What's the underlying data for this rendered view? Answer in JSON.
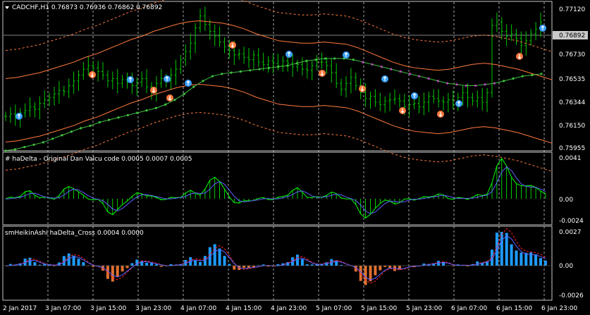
{
  "symbol_header": "CADCHF,H1  0.76873 0.76936 0.76862 0.76892",
  "colors": {
    "background": "#000000",
    "grid": "#cccccc",
    "candle": "#00c800",
    "envelope": "#ff7a3c",
    "trail_up": "#40c040",
    "trail_down": "#ff00ff",
    "arrow_up": "#3aa0ff",
    "arrow_down": "#ff7a3c",
    "hist_up": "#1e9bff",
    "hist_down": "#e07030",
    "ha_line": "#00ff00",
    "signal_line": "#6060ff",
    "cross_red": "#ff2020"
  },
  "main_panel": {
    "current_price": "0.76892",
    "y_ticks": [
      "0.77120",
      "0.76730",
      "0.76535",
      "0.76344",
      "0.76150",
      "0.75955"
    ]
  },
  "indicator1": {
    "title": "# haDelta - Original Dan Valcu code 0.0005 0.0007 0.0005",
    "y_ticks": [
      "0.0041",
      "0.00",
      "-0.0024"
    ]
  },
  "indicator2": {
    "title": "smHeikinAshi haDelta_Cross 0.0004 0.0000",
    "y_ticks": [
      "0.0027",
      "0.00",
      "-0.0026"
    ]
  },
  "time_axis": [
    "2 Jan 2017",
    "3 Jan 07:00",
    "3 Jan 15:00",
    "3 Jan 23:00",
    "4 Jan 07:00",
    "4 Jan 15:00",
    "4 Jan 23:00",
    "5 Jan 07:00",
    "5 Jan 15:00",
    "5 Jan 23:00",
    "6 Jan 07:00",
    "6 Jan 15:00",
    "6 Jan 23:00"
  ],
  "chart_data": {
    "type": "line",
    "candles_close": [
      0.762,
      0.7622,
      0.7619,
      0.7623,
      0.7625,
      0.7628,
      0.7626,
      0.7631,
      0.7634,
      0.7636,
      0.7639,
      0.7642,
      0.7641,
      0.7646,
      0.765,
      0.7655,
      0.766,
      0.7663,
      0.7661,
      0.7658,
      0.7655,
      0.765,
      0.7652,
      0.7648,
      0.7651,
      0.7649,
      0.7646,
      0.7649,
      0.7652,
      0.7645,
      0.7641,
      0.7648,
      0.7652,
      0.765,
      0.7655,
      0.766,
      0.7668,
      0.7675,
      0.7682,
      0.7695,
      0.7705,
      0.7698,
      0.7692,
      0.7688,
      0.7683,
      0.7679,
      0.7676,
      0.7672,
      0.7673,
      0.767,
      0.7668,
      0.7672,
      0.7666,
      0.7664,
      0.7667,
      0.7665,
      0.7663,
      0.7667,
      0.7665,
      0.7662,
      0.7664,
      0.766,
      0.7659,
      0.7663,
      0.7666,
      0.7666,
      0.7663,
      0.7657,
      0.7648,
      0.7643,
      0.7648,
      0.7653,
      0.7646,
      0.764,
      0.7635,
      0.7637,
      0.7632,
      0.763,
      0.7633,
      0.7634,
      0.7635,
      0.7633,
      0.7628,
      0.763,
      0.7631,
      0.7628,
      0.7632,
      0.7637,
      0.7635,
      0.7633,
      0.7632,
      0.7634,
      0.763,
      0.7636,
      0.764,
      0.7636,
      0.7633,
      0.7636,
      0.7632,
      0.764,
      0.7697,
      0.77,
      0.7692,
      0.7688,
      0.769,
      0.7686,
      0.768,
      0.7684,
      0.769,
      0.7694,
      0.77
    ],
    "envelope_upper": [
      0.7652,
      0.7653,
      0.7655,
      0.7657,
      0.766,
      0.7663,
      0.7666,
      0.767,
      0.7673,
      0.7677,
      0.7681,
      0.7685,
      0.7688,
      0.7692,
      0.7695,
      0.7698,
      0.77,
      0.7701,
      0.77,
      0.7699,
      0.7697,
      0.7694,
      0.769,
      0.7687,
      0.7684,
      0.7683,
      0.7682,
      0.7682,
      0.7683,
      0.7682,
      0.7681,
      0.7678,
      0.7674,
      0.767,
      0.7666,
      0.7663,
      0.7661,
      0.766,
      0.7659,
      0.766,
      0.7662,
      0.7664,
      0.7665,
      0.7664,
      0.7662,
      0.766,
      0.7657,
      0.7654,
      0.7651
    ],
    "trail_line": [
      0.7591,
      0.7592,
      0.7594,
      0.7596,
      0.7598,
      0.7601,
      0.7604,
      0.7607,
      0.761,
      0.7612,
      0.7615,
      0.7617,
      0.7619,
      0.7621,
      0.7623,
      0.7625,
      0.7627,
      0.763,
      0.7634,
      0.7639,
      0.7645,
      0.765,
      0.7654,
      0.7656,
      0.7657,
      0.7658,
      0.7659,
      0.766,
      0.7661,
      0.7662,
      0.7663,
      0.7665,
      0.7667,
      0.7668,
      0.7669,
      0.7669,
      0.7669,
      0.7668,
      0.7666,
      0.7664,
      0.7662,
      0.766,
      0.7658,
      0.7656,
      0.7654,
      0.7652,
      0.765,
      0.7648,
      0.7647,
      0.7646,
      0.7646,
      0.7647,
      0.7648,
      0.765,
      0.7652,
      0.7654,
      0.7655,
      0.7656
    ]
  }
}
